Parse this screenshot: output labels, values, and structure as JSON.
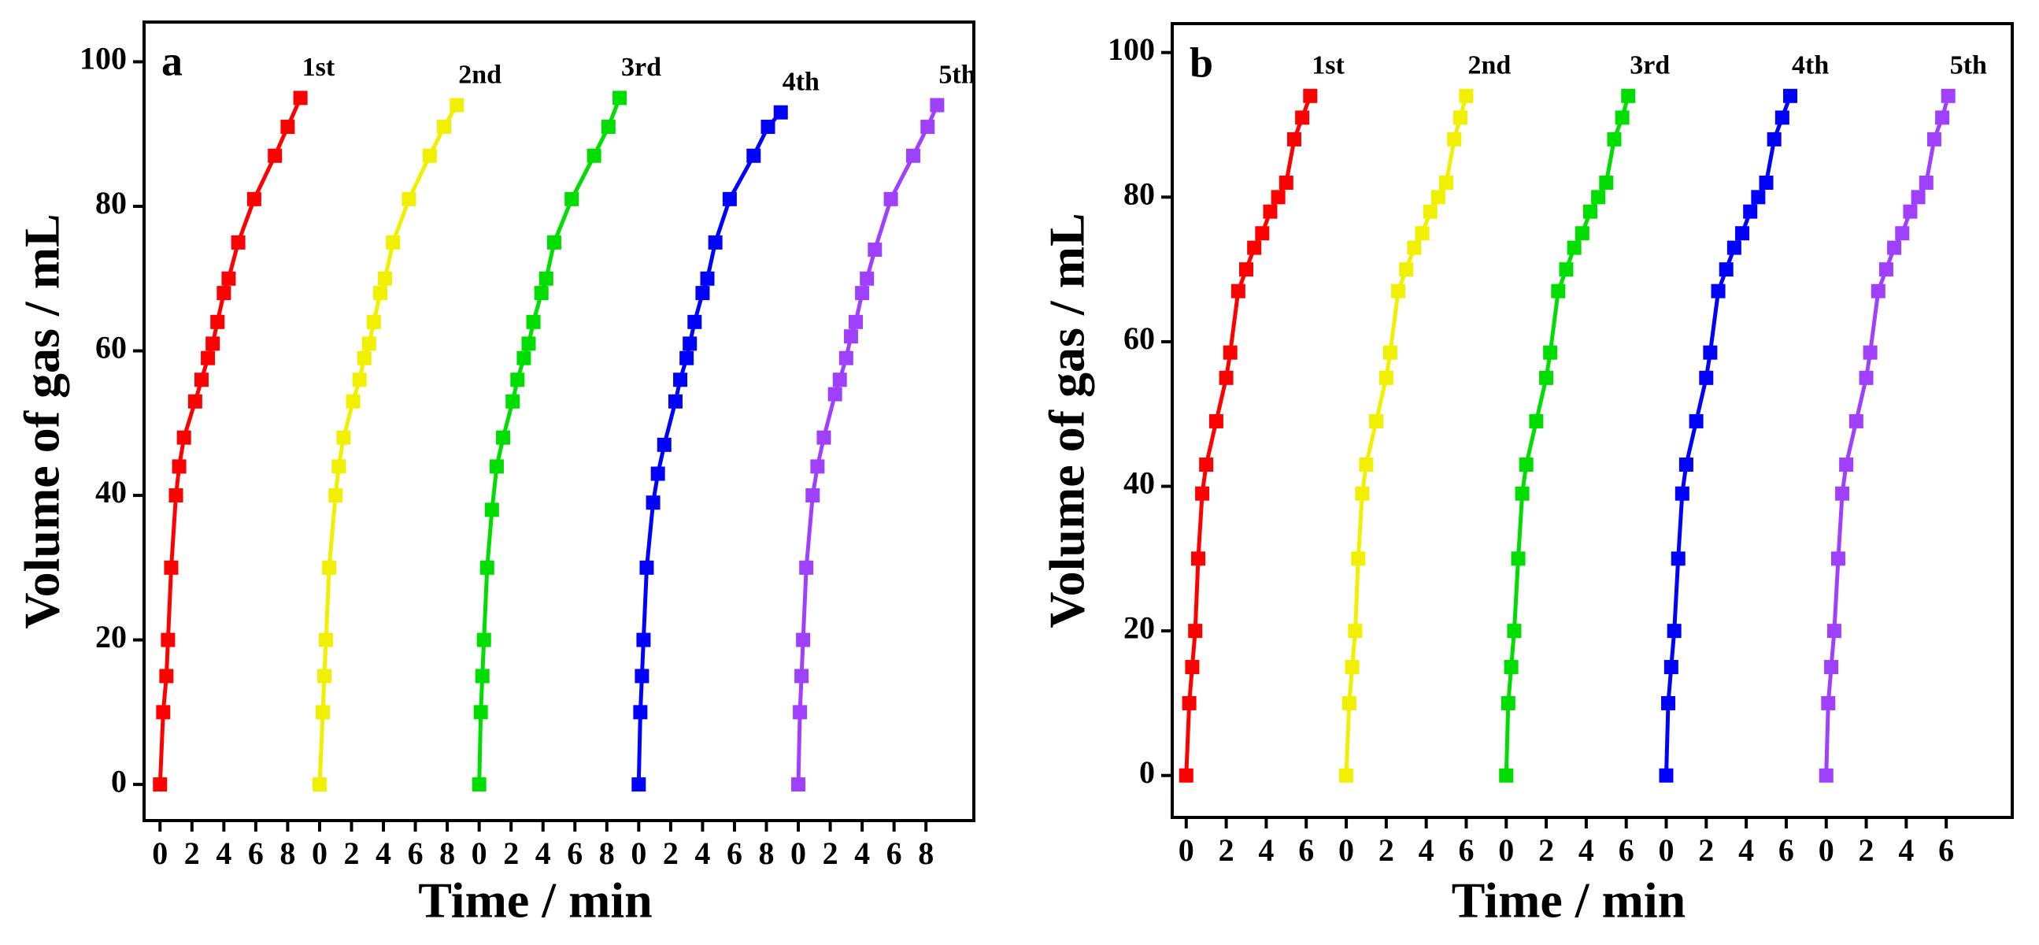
{
  "chart_data": [
    {
      "type": "line",
      "title": "a",
      "xlabel": "Time / min",
      "ylabel": "Volume of gas / mL",
      "xlim": [
        -1,
        51
      ],
      "ylim": [
        -5,
        105.5
      ],
      "xticks": [
        0,
        2,
        4,
        6,
        8,
        {
          "value": 10,
          "label": "0"
        },
        {
          "value": 12,
          "label": "2"
        },
        {
          "value": 14,
          "label": "4"
        },
        {
          "value": 16,
          "label": "6"
        },
        {
          "value": 18,
          "label": "8"
        },
        {
          "value": 20,
          "label": "0"
        },
        {
          "value": 22,
          "label": "2"
        },
        {
          "value": 24,
          "label": "4"
        },
        {
          "value": 26,
          "label": "6"
        },
        {
          "value": 28,
          "label": "8"
        },
        {
          "value": 30,
          "label": "0"
        },
        {
          "value": 32,
          "label": "2"
        },
        {
          "value": 34,
          "label": "4"
        },
        {
          "value": 36,
          "label": "6"
        },
        {
          "value": 38,
          "label": "8"
        },
        {
          "value": 40,
          "label": "0"
        },
        {
          "value": 42,
          "label": "2"
        },
        {
          "value": 44,
          "label": "4"
        },
        {
          "value": 46,
          "label": "6"
        },
        {
          "value": 48,
          "label": "8"
        }
      ],
      "yticks": [
        0,
        20,
        40,
        60,
        80,
        100
      ],
      "series": [
        {
          "name": "1st",
          "color": "#ff0000",
          "x": [
            0,
            0.2,
            0.4,
            0.5,
            0.7,
            1.0,
            1.2,
            1.5,
            2.2,
            2.6,
            3.0,
            3.3,
            3.6,
            4.0,
            4.3,
            4.9,
            5.9,
            7.2,
            8.0,
            8.8
          ],
          "values": [
            0,
            10,
            15,
            20,
            30,
            40,
            44,
            48,
            53,
            56,
            59,
            61,
            64,
            68,
            70,
            75,
            81,
            87,
            91,
            95
          ]
        },
        {
          "name": "2nd",
          "color": "#f0f000",
          "x": [
            10,
            10.2,
            10.3,
            10.4,
            10.6,
            11.0,
            11.2,
            11.5,
            12.1,
            12.5,
            12.8,
            13.1,
            13.4,
            13.8,
            14.1,
            14.6,
            15.6,
            16.9,
            17.8,
            18.6
          ],
          "values": [
            0,
            10,
            15,
            20,
            30,
            40,
            44,
            48,
            53,
            56,
            59,
            61,
            64,
            68,
            70,
            75,
            81,
            87,
            91,
            94
          ]
        },
        {
          "name": "3rd",
          "color": "#00dd00",
          "x": [
            20,
            20.1,
            20.2,
            20.3,
            20.5,
            20.8,
            21.1,
            21.5,
            22.1,
            22.4,
            22.8,
            23.1,
            23.4,
            23.9,
            24.2,
            24.7,
            25.8,
            27.2,
            28.1,
            28.8
          ],
          "values": [
            0,
            10,
            15,
            20,
            30,
            38,
            44,
            48,
            53,
            56,
            59,
            61,
            64,
            68,
            70,
            75,
            81,
            87,
            91,
            95
          ]
        },
        {
          "name": "4th",
          "color": "#0000ff",
          "x": [
            30,
            30.1,
            30.2,
            30.3,
            30.5,
            30.9,
            31.2,
            31.6,
            32.3,
            32.6,
            33.0,
            33.2,
            33.5,
            34.0,
            34.3,
            34.8,
            35.7,
            37.2,
            38.1,
            38.9
          ],
          "values": [
            0,
            10,
            15,
            20,
            30,
            39,
            43,
            47,
            53,
            56,
            59,
            61,
            64,
            68,
            70,
            75,
            81,
            87,
            91,
            93
          ]
        },
        {
          "name": "5th",
          "color": "#a040ff",
          "x": [
            40,
            40.1,
            40.2,
            40.3,
            40.5,
            40.9,
            41.2,
            41.6,
            42.3,
            42.6,
            43.0,
            43.3,
            43.6,
            44.0,
            44.3,
            44.8,
            45.8,
            47.2,
            48.1,
            48.7
          ],
          "values": [
            0,
            10,
            15,
            20,
            30,
            40,
            44,
            48,
            54,
            56,
            59,
            62,
            64,
            68,
            70,
            74,
            81,
            87,
            91,
            94
          ]
        }
      ]
    },
    {
      "type": "line",
      "title": "b",
      "xlabel": "Time / min",
      "ylabel": "Volume of gas / mL",
      "xlim": [
        -0.7,
        41.3
      ],
      "ylim": [
        -5.8,
        104
      ],
      "xticks": [
        0,
        2,
        4,
        6,
        {
          "value": 8,
          "label": "0"
        },
        {
          "value": 10,
          "label": "2"
        },
        {
          "value": 12,
          "label": "4"
        },
        {
          "value": 14,
          "label": "6"
        },
        {
          "value": 16,
          "label": "0"
        },
        {
          "value": 18,
          "label": "2"
        },
        {
          "value": 20,
          "label": "4"
        },
        {
          "value": 22,
          "label": "6"
        },
        {
          "value": 24,
          "label": "0"
        },
        {
          "value": 26,
          "label": "2"
        },
        {
          "value": 28,
          "label": "4"
        },
        {
          "value": 30,
          "label": "6"
        },
        {
          "value": 32,
          "label": "0"
        },
        {
          "value": 34,
          "label": "2"
        },
        {
          "value": 36,
          "label": "4"
        },
        {
          "value": 38,
          "label": "6"
        }
      ],
      "yticks": [
        0,
        20,
        40,
        60,
        80,
        100
      ],
      "series": [
        {
          "name": "1st",
          "color": "#ff0000",
          "x": [
            0,
            0.15,
            0.3,
            0.45,
            0.6,
            0.8,
            1.0,
            1.5,
            2.0,
            2.2,
            2.6,
            3.0,
            3.4,
            3.8,
            4.2,
            4.6,
            5.0,
            5.4,
            5.8,
            6.2
          ],
          "values": [
            0,
            10,
            15,
            20,
            30,
            39,
            43,
            49,
            55,
            58.5,
            67,
            70,
            73,
            75,
            78,
            80,
            82,
            88,
            91,
            94
          ]
        },
        {
          "name": "2nd",
          "color": "#f0f000",
          "x": [
            8,
            8.15,
            8.3,
            8.45,
            8.6,
            8.8,
            9.0,
            9.5,
            10.0,
            10.2,
            10.6,
            11.0,
            11.4,
            11.8,
            12.2,
            12.6,
            13.0,
            13.4,
            13.7,
            14.0
          ],
          "values": [
            0,
            10,
            15,
            20,
            30,
            39,
            43,
            49,
            55,
            58.5,
            67,
            70,
            73,
            75,
            78,
            80,
            82,
            88,
            91,
            94
          ]
        },
        {
          "name": "3rd",
          "color": "#00dd00",
          "x": [
            16,
            16.1,
            16.25,
            16.4,
            16.6,
            16.8,
            17.0,
            17.5,
            18.0,
            18.2,
            18.6,
            19.0,
            19.4,
            19.8,
            20.2,
            20.6,
            21.0,
            21.4,
            21.8,
            22.1
          ],
          "values": [
            0,
            10,
            15,
            20,
            30,
            39,
            43,
            49,
            55,
            58.5,
            67,
            70,
            73,
            75,
            78,
            80,
            82,
            88,
            91,
            94
          ]
        },
        {
          "name": "4th",
          "color": "#0000ff",
          "x": [
            24,
            24.1,
            24.25,
            24.4,
            24.6,
            24.8,
            25.0,
            25.5,
            26.0,
            26.2,
            26.6,
            27.0,
            27.4,
            27.8,
            28.2,
            28.6,
            29.0,
            29.4,
            29.8,
            30.2
          ],
          "values": [
            0,
            10,
            15,
            20,
            30,
            39,
            43,
            49,
            55,
            58.5,
            67,
            70,
            73,
            75,
            78,
            80,
            82,
            88,
            91,
            94
          ]
        },
        {
          "name": "5th",
          "color": "#a040ff",
          "x": [
            32,
            32.1,
            32.25,
            32.4,
            32.6,
            32.8,
            33.0,
            33.5,
            34.0,
            34.2,
            34.6,
            35.0,
            35.4,
            35.8,
            36.2,
            36.6,
            37.0,
            37.4,
            37.8,
            38.1
          ],
          "values": [
            0,
            10,
            15,
            20,
            30,
            39,
            43,
            49,
            55,
            58.5,
            67,
            70,
            73,
            75,
            78,
            80,
            82,
            88,
            91,
            94
          ]
        }
      ]
    }
  ]
}
